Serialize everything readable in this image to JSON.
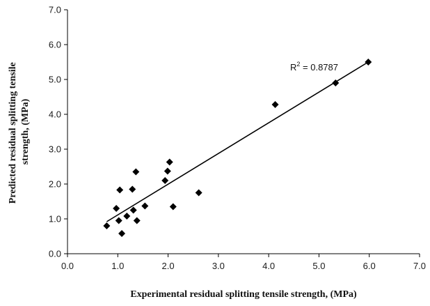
{
  "chart_data": {
    "type": "scatter",
    "title": "",
    "xlabel": "Experimental residual splitting tensile strength, (MPa)",
    "ylabel_lines": [
      "Predicted residual splitting tensile",
      "strength, (MPa)"
    ],
    "xlim": [
      0,
      7
    ],
    "ylim": [
      0,
      7
    ],
    "xticks": [
      "0.0",
      "1.0",
      "2.0",
      "3.0",
      "4.0",
      "5.0",
      "6.0",
      "7.0"
    ],
    "yticks": [
      "0.0",
      "1.0",
      "2.0",
      "3.0",
      "4.0",
      "5.0",
      "6.0",
      "7.0"
    ],
    "grid": false,
    "legend": "none",
    "marker": "diamond",
    "marker_color": "#000000",
    "points": [
      {
        "x": 0.78,
        "y": 0.8
      },
      {
        "x": 0.97,
        "y": 1.3
      },
      {
        "x": 1.02,
        "y": 0.95
      },
      {
        "x": 1.04,
        "y": 1.83
      },
      {
        "x": 1.08,
        "y": 0.58
      },
      {
        "x": 1.18,
        "y": 1.08
      },
      {
        "x": 1.29,
        "y": 1.85
      },
      {
        "x": 1.31,
        "y": 1.25
      },
      {
        "x": 1.36,
        "y": 2.35
      },
      {
        "x": 1.38,
        "y": 0.95
      },
      {
        "x": 1.54,
        "y": 1.37
      },
      {
        "x": 1.94,
        "y": 2.1
      },
      {
        "x": 1.99,
        "y": 2.37
      },
      {
        "x": 2.03,
        "y": 2.63
      },
      {
        "x": 2.1,
        "y": 1.35
      },
      {
        "x": 2.61,
        "y": 1.75
      },
      {
        "x": 4.13,
        "y": 4.28
      },
      {
        "x": 5.33,
        "y": 4.9
      },
      {
        "x": 5.98,
        "y": 5.5
      }
    ],
    "trendline": {
      "x": [
        0.78,
        5.98
      ],
      "y": [
        0.92,
        5.5
      ]
    },
    "annotation": {
      "base": "R",
      "sup": "2",
      "rest": " = 0.8787"
    }
  }
}
